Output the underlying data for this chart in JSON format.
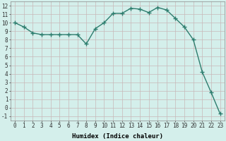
{
  "x": [
    0,
    1,
    2,
    3,
    4,
    5,
    6,
    7,
    8,
    9,
    10,
    11,
    12,
    13,
    14,
    15,
    16,
    17,
    18,
    19,
    20,
    21,
    22,
    23
  ],
  "y": [
    10.0,
    9.5,
    8.8,
    8.6,
    8.6,
    8.6,
    8.6,
    8.6,
    7.5,
    9.3,
    10.0,
    11.1,
    11.1,
    11.7,
    11.6,
    11.2,
    11.8,
    11.5,
    10.5,
    9.5,
    8.0,
    4.2,
    1.8,
    -0.7
  ],
  "line_color": "#2d7d6e",
  "marker": "+",
  "marker_size": 4.0,
  "marker_lw": 1.0,
  "bg_color": "#d4efeb",
  "grid_color": "#c8b8b8",
  "xlabel": "Humidex (Indice chaleur)",
  "ylabel_ticks": [
    -1,
    0,
    1,
    2,
    3,
    4,
    5,
    6,
    7,
    8,
    9,
    10,
    11,
    12
  ],
  "xticks": [
    0,
    1,
    2,
    3,
    4,
    5,
    6,
    7,
    8,
    9,
    10,
    11,
    12,
    13,
    14,
    15,
    16,
    17,
    18,
    19,
    20,
    21,
    22,
    23
  ],
  "xlim": [
    -0.5,
    23.5
  ],
  "ylim": [
    -1.5,
    12.5
  ],
  "xlabel_fontsize": 6.5,
  "tick_fontsize": 5.5,
  "line_width": 1.0,
  "fig_width": 3.2,
  "fig_height": 2.0,
  "dpi": 100
}
